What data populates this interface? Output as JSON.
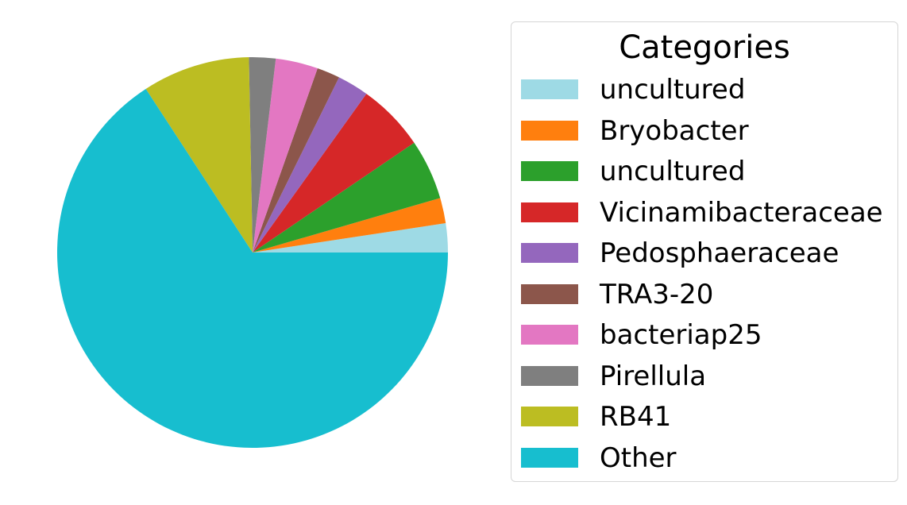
{
  "chart_data": {
    "type": "pie",
    "title": "",
    "start_angle_deg": 0,
    "direction": "counterclockwise",
    "legend": {
      "title": "Categories",
      "placement": "right"
    },
    "slices": [
      {
        "label": "uncultured",
        "value": 2.4,
        "color": "#9edae5"
      },
      {
        "label": "Bryobacter",
        "value": 2.1,
        "color": "#ff7f0e"
      },
      {
        "label": "uncultured",
        "value": 5.0,
        "color": "#2ca02c"
      },
      {
        "label": "Vicinamibacteraceae",
        "value": 5.6,
        "color": "#d62728"
      },
      {
        "label": "Pedosphaeraceae",
        "value": 2.6,
        "color": "#9467bd"
      },
      {
        "label": "TRA3-20",
        "value": 1.9,
        "color": "#8c564b"
      },
      {
        "label": "bacteriap25",
        "value": 3.5,
        "color": "#e377c2"
      },
      {
        "label": "Pirellula",
        "value": 2.2,
        "color": "#7f7f7f"
      },
      {
        "label": "RB41",
        "value": 8.9,
        "color": "#bcbd22"
      },
      {
        "label": "Other",
        "value": 65.8,
        "color": "#17becf"
      }
    ]
  }
}
